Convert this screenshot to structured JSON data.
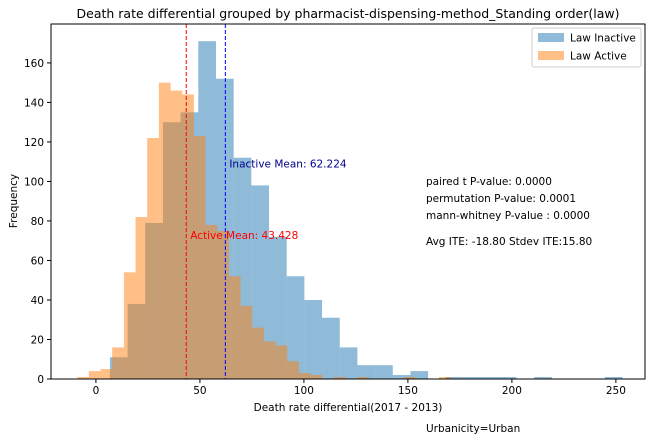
{
  "chart_data": {
    "type": "bar",
    "title": "Death rate differential grouped by pharmacist-dispensing-method_Standing order(law)",
    "xlabel": "Death rate differential(2017 - 2013)",
    "ylabel": "Frequency",
    "xlim": [
      -21.6,
      264
    ],
    "ylim": [
      0,
      179.7
    ],
    "xticks": [
      0,
      50,
      100,
      150,
      200,
      250
    ],
    "yticks": [
      0,
      20,
      40,
      60,
      80,
      100,
      120,
      140,
      160
    ],
    "grid": false,
    "legend_position": "top-right",
    "series": [
      {
        "name": "Law Inactive",
        "color": "#1f77b4",
        "alpha": 0.5,
        "bin_start": 6.73,
        "bin_width": 8.5,
        "values": [
          11,
          38,
          79,
          130,
          135,
          171,
          152,
          112,
          98,
          72,
          52,
          40,
          31,
          16,
          7,
          7,
          2,
          4,
          0,
          1,
          1,
          1,
          1,
          0,
          1,
          0,
          0,
          0,
          1
        ]
      },
      {
        "name": "Law Active",
        "color": "#ff7f0e",
        "alpha": 0.5,
        "bin_start": -9.0,
        "bin_width": 5.61,
        "values": [
          1,
          4,
          5,
          16,
          54,
          82,
          122,
          150,
          146,
          144,
          123,
          78,
          75,
          52,
          37,
          26,
          19,
          17,
          9,
          3,
          2,
          0,
          1,
          0,
          1,
          0,
          0,
          0,
          1,
          0,
          0,
          1
        ]
      }
    ],
    "vlines": [
      {
        "name": "active-mean",
        "x": 43.428,
        "color": "#ff0000",
        "label": "Active Mean: 43.428",
        "label_y": 73
      },
      {
        "name": "inactive-mean",
        "x": 62.224,
        "color": "#0000ff",
        "label": "Inactive Mean: 62.224",
        "label_y": 109
      }
    ],
    "annotations": [
      "paired t P-value: 0.0000",
      "permutation P-value: 0.0001",
      "mann-whitney P-value : 0.0000",
      "Avg ITE: -18.80 Stdev ITE:15.80"
    ],
    "footer": "Urbanicity=Urban",
    "label_colors": {
      "inactive_mean_text": "#00008b",
      "active_mean_text": "#ff0000"
    }
  }
}
